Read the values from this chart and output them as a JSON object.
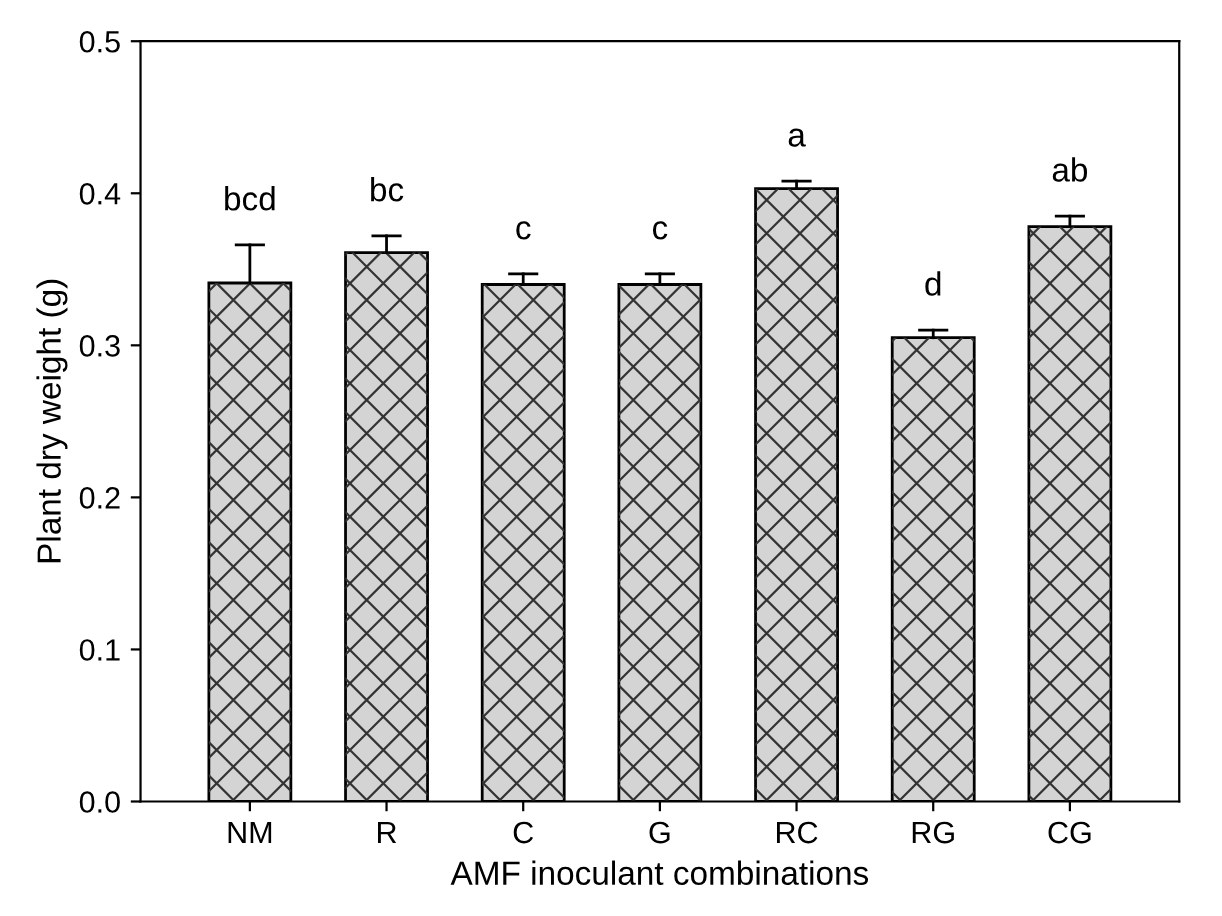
{
  "chart_data": {
    "type": "bar",
    "xlabel": "AMF inoculant combinations",
    "ylabel": "Plant dry weight (g)",
    "categories": [
      "NM",
      "R",
      "C",
      "G",
      "RC",
      "RG",
      "CG"
    ],
    "values": [
      0.341,
      0.361,
      0.34,
      0.34,
      0.403,
      0.305,
      0.378
    ],
    "errors": [
      [
        0.341,
        0.366
      ],
      [
        0.361,
        0.372
      ],
      [
        0.34,
        0.347
      ],
      [
        0.34,
        0.347
      ],
      [
        0.403,
        0.408
      ],
      [
        0.305,
        0.31
      ],
      [
        0.378,
        0.385
      ]
    ],
    "color": "#d4d4d4",
    "ylim": [
      0,
      0.5
    ],
    "yticks": [
      {
        "value": 0,
        "label": "0.0"
      },
      {
        "value": 0.1,
        "label": "0.1"
      },
      {
        "value": 0.2,
        "label": "0.2"
      },
      {
        "value": 0.3,
        "label": "0.3"
      },
      {
        "value": 0.4,
        "label": "0.4"
      },
      {
        "value": 0.5,
        "label": "0.5"
      }
    ],
    "grid": false,
    "legend": false,
    "annotations": [
      "bcd",
      "bc",
      "c",
      "c",
      "a",
      "d",
      "ab"
    ]
  }
}
